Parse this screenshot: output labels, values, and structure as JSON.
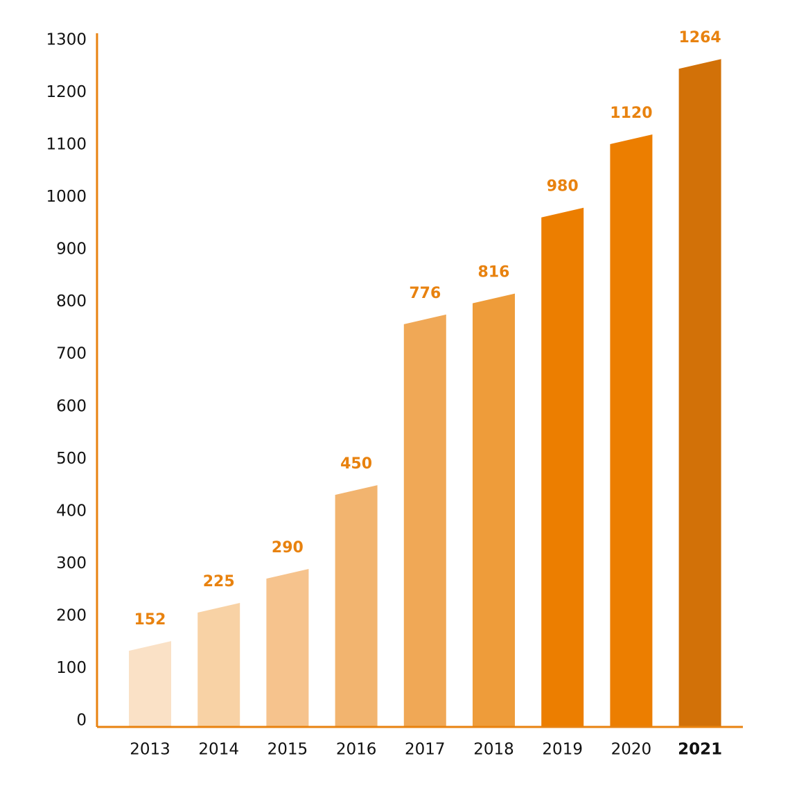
{
  "chart_data": {
    "type": "bar",
    "title": "",
    "xlabel": "",
    "ylabel": "",
    "categories": [
      "2013",
      "2014",
      "2015",
      "2016",
      "2017",
      "2018",
      "2019",
      "2020",
      "2021"
    ],
    "values": [
      152,
      225,
      290,
      450,
      776,
      816,
      980,
      1120,
      1264
    ],
    "data_labels": [
      "152",
      "225",
      "290",
      "450",
      "776",
      "816",
      "980",
      "1120",
      "1264"
    ],
    "ylim": [
      0,
      1300
    ],
    "yticks": [
      "0",
      "100",
      "200",
      "300",
      "400",
      "500",
      "600",
      "700",
      "800",
      "900",
      "1000",
      "1100",
      "1200",
      "1300"
    ],
    "highlighted_category": "2021",
    "grid": false,
    "legend": "none",
    "colors": {
      "axis": "#E8820F",
      "data_label": "#E8820F",
      "bars": [
        "#FAE1C6",
        "#F8D2A5",
        "#F6C38D",
        "#F2B46F",
        "#F0A856",
        "#EE9C3A",
        "#EC7E00",
        "#EC7E00",
        "#D27108"
      ]
    }
  }
}
